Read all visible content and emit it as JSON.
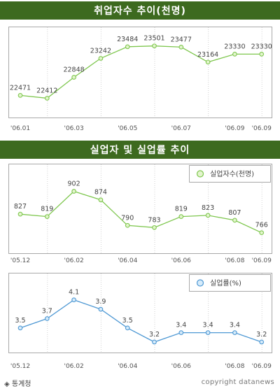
{
  "footer": {
    "source_icon": "diamond-bullet-icon",
    "source": "통계청",
    "copyright": "copyright datanews"
  },
  "colors": {
    "banner": "#3d6a1f",
    "green_line": "#7fc74f",
    "green_fill": "#e3f5cd",
    "blue_line": "#4f99d4",
    "blue_fill": "#d6ebfa",
    "frame": "#a9a9a9",
    "grid": "#d2d2d2"
  },
  "chart_data": [
    {
      "type": "line",
      "title": "취업자수 추이(천명)",
      "categories": [
        "'06.01",
        "'06.02",
        "'06.03",
        "'06.04",
        "'06.05",
        "'06.06",
        "'06.07",
        "'06.08",
        "'06.09",
        "'06.09"
      ],
      "x_tick_labels": [
        "'06.01",
        "'06.03",
        "'06.05",
        "'06.07",
        "'06.09",
        "'06.09"
      ],
      "series": [
        {
          "values": [
            22471,
            22412,
            22848,
            23242,
            23484,
            23501,
            23477,
            23164,
            23330,
            23330
          ]
        }
      ],
      "ylim": [
        22200,
        23700
      ],
      "grid": "vertical"
    },
    {
      "type": "line",
      "title": "실업자 및 실업률 추이",
      "categories": [
        "'05.12",
        "'06.01",
        "'06.02",
        "'06.03",
        "'06.04",
        "'06.05",
        "'06.06",
        "'06.07",
        "'06.08",
        "'06.09"
      ],
      "x_tick_labels": [
        "'05.12",
        "'06.02",
        "'06.04",
        "'06.06",
        "'06.08",
        "'06.09"
      ],
      "series": [
        {
          "name": "실업자수(천명)",
          "values": [
            827,
            819,
            902,
            874,
            790,
            783,
            819,
            823,
            807,
            766
          ]
        }
      ],
      "ylim": [
        740,
        940
      ],
      "legend": "top-right",
      "grid": "vertical"
    },
    {
      "type": "line",
      "categories": [
        "'05.12",
        "'06.01",
        "'06.02",
        "'06.03",
        "'06.04",
        "'06.05",
        "'06.06",
        "'06.07",
        "'06.08",
        "'06.09"
      ],
      "x_tick_labels": [
        "'05.12",
        "'06.02",
        "'06.04",
        "'06.06",
        "'06.08",
        "'06.09"
      ],
      "series": [
        {
          "name": "실업률(%)",
          "values": [
            3.5,
            3.7,
            4.1,
            3.9,
            3.5,
            3.2,
            3.4,
            3.4,
            3.4,
            3.2
          ]
        }
      ],
      "ylim": [
        3.05,
        4.35
      ],
      "legend": "top-right",
      "grid": "vertical"
    }
  ]
}
